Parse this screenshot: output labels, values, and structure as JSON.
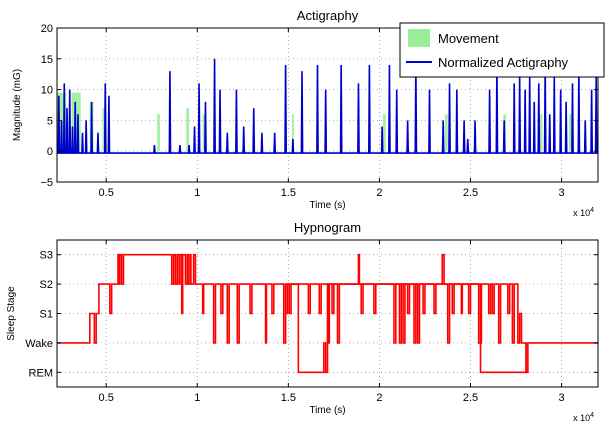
{
  "chart_data": [
    {
      "type": "line",
      "title": "Actigraphy",
      "xlabel": "Time (s)",
      "ylabel": "Magnitude (mG)",
      "xlim": [
        2300,
        32000
      ],
      "ylim": [
        -5,
        20
      ],
      "x_ticks": [
        5000,
        10000,
        15000,
        20000,
        25000,
        30000
      ],
      "x_tick_labels": [
        "0.5",
        "1",
        "1.5",
        "2",
        "2.5",
        "3"
      ],
      "x_exponent_label": "x 10",
      "x_exponent_power": "4",
      "y_ticks": [
        -5,
        0,
        5,
        10,
        15,
        20
      ],
      "y_tick_labels": [
        "−5",
        "0",
        "5",
        "10",
        "15",
        "20"
      ],
      "grid": true,
      "legend_position": "top-right",
      "series": [
        {
          "name": "Movement",
          "kind": "area",
          "color": "#99ee99",
          "intervals": [
            [
              2300,
              2800,
              9.5
            ],
            [
              3100,
              3600,
              9.5
            ],
            [
              4100,
              4300,
              8
            ],
            [
              4800,
              5000,
              7
            ],
            [
              7800,
              7950,
              6
            ],
            [
              9400,
              9550,
              7
            ],
            [
              10300,
              10450,
              6
            ],
            [
              15200,
              15300,
              6
            ],
            [
              20200,
              20350,
              6
            ],
            [
              23600,
              23750,
              6
            ],
            [
              26800,
              26950,
              6
            ],
            [
              28800,
              28950,
              6
            ],
            [
              30400,
              30550,
              6
            ]
          ]
        },
        {
          "name": "Normalized Actigraphy",
          "kind": "line",
          "color": "#0000cc",
          "baseline": -0.3,
          "spikes": [
            [
              2400,
              9
            ],
            [
              2550,
              5
            ],
            [
              2700,
              11
            ],
            [
              2850,
              7
            ],
            [
              3000,
              10
            ],
            [
              3150,
              4
            ],
            [
              3300,
              8
            ],
            [
              3450,
              6
            ],
            [
              3700,
              3
            ],
            [
              3900,
              5
            ],
            [
              4200,
              8
            ],
            [
              4550,
              3
            ],
            [
              4950,
              11
            ],
            [
              5150,
              9
            ],
            [
              7650,
              1
            ],
            [
              8500,
              13
            ],
            [
              9050,
              1
            ],
            [
              9550,
              1
            ],
            [
              9850,
              4
            ],
            [
              10100,
              11
            ],
            [
              10450,
              8
            ],
            [
              10950,
              15
            ],
            [
              11250,
              10
            ],
            [
              11650,
              3
            ],
            [
              12150,
              10
            ],
            [
              12550,
              4
            ],
            [
              13100,
              7
            ],
            [
              13550,
              3
            ],
            [
              14250,
              3
            ],
            [
              14850,
              14
            ],
            [
              15250,
              2
            ],
            [
              15750,
              13
            ],
            [
              16600,
              14
            ],
            [
              17050,
              10
            ],
            [
              17900,
              14
            ],
            [
              18850,
              11
            ],
            [
              19450,
              14
            ],
            [
              20150,
              4
            ],
            [
              20550,
              14
            ],
            [
              20950,
              10
            ],
            [
              21550,
              5
            ],
            [
              22000,
              14
            ],
            [
              22750,
              10
            ],
            [
              23500,
              5
            ],
            [
              23850,
              11
            ],
            [
              24250,
              10
            ],
            [
              24650,
              5
            ],
            [
              24850,
              2
            ],
            [
              25250,
              5
            ],
            [
              26050,
              10
            ],
            [
              26450,
              14
            ],
            [
              26850,
              5
            ],
            [
              27400,
              11
            ],
            [
              27700,
              12
            ],
            [
              28000,
              10
            ],
            [
              28250,
              12
            ],
            [
              28500,
              8
            ],
            [
              28750,
              11
            ],
            [
              29100,
              14
            ],
            [
              29350,
              6
            ],
            [
              29600,
              12
            ],
            [
              29950,
              10
            ],
            [
              30250,
              8
            ],
            [
              30600,
              11
            ],
            [
              30950,
              13
            ],
            [
              31300,
              5
            ],
            [
              31650,
              10
            ],
            [
              31900,
              12
            ]
          ]
        }
      ]
    },
    {
      "type": "line",
      "title": "Hypnogram",
      "xlabel": "Time (s)",
      "ylabel": "Sleep Stage",
      "xlim": [
        2300,
        32000
      ],
      "ylim": [
        -1.5,
        3.5
      ],
      "x_ticks": [
        5000,
        10000,
        15000,
        20000,
        25000,
        30000
      ],
      "x_tick_labels": [
        "0.5",
        "1",
        "1.5",
        "2",
        "2.5",
        "3"
      ],
      "x_exponent_label": "x 10",
      "x_exponent_power": "4",
      "y_ticks": [
        -1,
        0,
        1,
        2,
        3
      ],
      "y_tick_labels": [
        "REM",
        "Wake",
        "S1",
        "S2",
        "S3"
      ],
      "grid": true,
      "series": [
        {
          "name": "",
          "color": "#ff0000",
          "steps": [
            [
              2300,
              0
            ],
            [
              4000,
              0
            ],
            [
              4100,
              1
            ],
            [
              4300,
              1
            ],
            [
              4350,
              0
            ],
            [
              4450,
              1
            ],
            [
              4600,
              2
            ],
            [
              5100,
              2
            ],
            [
              5200,
              1
            ],
            [
              5300,
              2
            ],
            [
              5650,
              3
            ],
            [
              5700,
              2
            ],
            [
              5750,
              3
            ],
            [
              5850,
              2
            ],
            [
              5950,
              3
            ],
            [
              8600,
              2
            ],
            [
              8700,
              3
            ],
            [
              8800,
              2
            ],
            [
              8900,
              3
            ],
            [
              9000,
              2
            ],
            [
              9050,
              3
            ],
            [
              9150,
              1
            ],
            [
              9200,
              3
            ],
            [
              9350,
              2
            ],
            [
              9450,
              3
            ],
            [
              9500,
              2
            ],
            [
              9600,
              3
            ],
            [
              9650,
              2
            ],
            [
              9800,
              3
            ],
            [
              9900,
              2
            ],
            [
              10000,
              2
            ],
            [
              10300,
              1
            ],
            [
              10350,
              2
            ],
            [
              10900,
              0
            ],
            [
              11000,
              2
            ],
            [
              11250,
              2
            ],
            [
              11300,
              1
            ],
            [
              11400,
              2
            ],
            [
              11650,
              0
            ],
            [
              11750,
              2
            ],
            [
              12200,
              0
            ],
            [
              12300,
              2
            ],
            [
              12800,
              2
            ],
            [
              12900,
              1
            ],
            [
              13000,
              2
            ],
            [
              13750,
              0
            ],
            [
              13800,
              2
            ],
            [
              14000,
              2
            ],
            [
              14100,
              1
            ],
            [
              14200,
              2
            ],
            [
              14750,
              0
            ],
            [
              14850,
              2
            ],
            [
              16000,
              2
            ],
            [
              16100,
              1
            ],
            [
              16200,
              2
            ],
            [
              16600,
              2
            ],
            [
              16700,
              1
            ],
            [
              16800,
              2
            ],
            [
              17200,
              0
            ],
            [
              17250,
              2
            ],
            [
              17400,
              1
            ],
            [
              17500,
              2
            ],
            [
              17700,
              0
            ],
            [
              17800,
              2
            ],
            [
              18800,
              2
            ],
            [
              18850,
              3
            ],
            [
              18900,
              2
            ],
            [
              19000,
              1
            ],
            [
              19100,
              2
            ],
            [
              19700,
              1
            ],
            [
              19800,
              2
            ],
            [
              20800,
              0
            ],
            [
              20900,
              2
            ],
            [
              21100,
              0
            ],
            [
              21200,
              2
            ],
            [
              21300,
              0
            ],
            [
              21400,
              2
            ],
            [
              21500,
              2
            ],
            [
              21550,
              1
            ],
            [
              21650,
              2
            ],
            [
              21900,
              0
            ],
            [
              22000,
              2
            ],
            [
              22100,
              0
            ],
            [
              22200,
              2
            ],
            [
              22400,
              1
            ],
            [
              22500,
              2
            ],
            [
              23000,
              1
            ],
            [
              23100,
              2
            ],
            [
              23450,
              3
            ],
            [
              23550,
              2
            ],
            [
              23750,
              0
            ],
            [
              23850,
              2
            ],
            [
              24000,
              1
            ],
            [
              24100,
              2
            ],
            [
              24500,
              1
            ],
            [
              24550,
              2
            ],
            [
              24900,
              1
            ],
            [
              25000,
              2
            ],
            [
              25350,
              2
            ],
            [
              25450,
              0
            ],
            [
              25600,
              2
            ],
            [
              25900,
              2
            ],
            [
              26000,
              1
            ],
            [
              26100,
              2
            ],
            [
              26200,
              1
            ],
            [
              26300,
              2
            ],
            [
              26550,
              0
            ],
            [
              26650,
              2
            ],
            [
              27050,
              1
            ],
            [
              27150,
              2
            ],
            [
              27300,
              0
            ],
            [
              27400,
              2
            ],
            [
              27600,
              0
            ],
            [
              27700,
              1
            ],
            [
              27800,
              0
            ],
            [
              28000,
              0
            ],
            [
              28050,
              -1
            ],
            [
              28150,
              0
            ],
            [
              30000,
              0
            ],
            [
              31000,
              0
            ],
            [
              32000,
              0
            ]
          ],
          "segments": [
            [
              14900,
              1
            ],
            [
              14950,
              2
            ],
            [
              15050,
              1
            ],
            [
              15150,
              2
            ],
            [
              15550,
              -1
            ],
            [
              16950,
              0
            ],
            [
              17050,
              -1
            ],
            [
              17150,
              2
            ],
            [
              25550,
              -1
            ],
            [
              28050,
              0
            ]
          ]
        }
      ]
    }
  ]
}
